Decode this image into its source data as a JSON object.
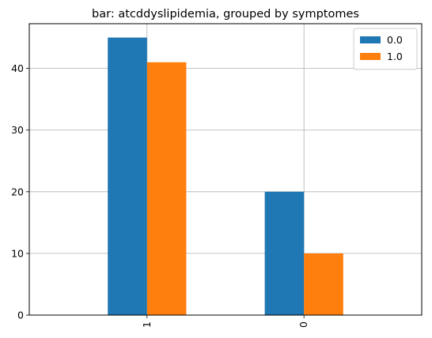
{
  "chart_data": {
    "type": "bar",
    "title": "bar: atcddyslipidemia, grouped by symptomes",
    "xlabel": "",
    "ylabel": "",
    "categories": [
      "1",
      "0"
    ],
    "series": [
      {
        "name": "0.0",
        "color": "#1f77b4",
        "values": [
          45,
          20
        ]
      },
      {
        "name": "1.0",
        "color": "#ff7f0e",
        "values": [
          41,
          10
        ]
      }
    ],
    "ylim": [
      0,
      47.25
    ],
    "yticks": [
      0,
      10,
      20,
      30,
      40
    ],
    "grid": true,
    "legend_position": "top-right",
    "x_tick_rotation": 90
  }
}
